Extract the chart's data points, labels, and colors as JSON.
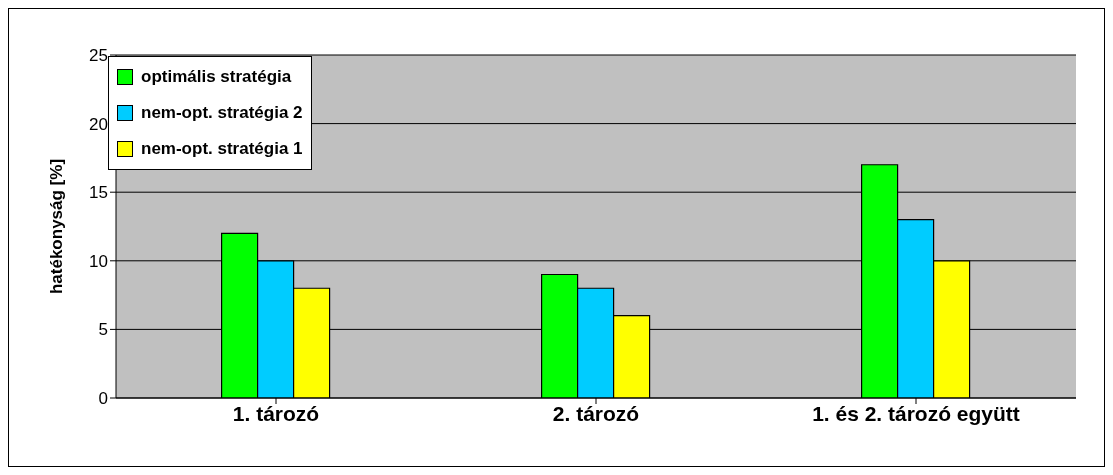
{
  "chart_data": {
    "type": "bar",
    "ylabel": "hatékonyság [%]",
    "categories": [
      "1. tározó",
      "2. tározó",
      "1. és 2. tározó együtt"
    ],
    "series": [
      {
        "name": "optimális stratégia",
        "color": "#00ff00",
        "values": [
          12,
          9,
          17
        ]
      },
      {
        "name": "nem-opt. stratégia 2",
        "color": "#00ccff",
        "values": [
          10,
          8,
          13
        ]
      },
      {
        "name": "nem-opt. stratégia 1",
        "color": "#ffff00",
        "values": [
          8,
          6,
          10
        ]
      }
    ],
    "ylim": [
      0,
      25
    ],
    "yticks": [
      0,
      5,
      10,
      15,
      20,
      25
    ],
    "grid": "y",
    "legend": "top left"
  }
}
